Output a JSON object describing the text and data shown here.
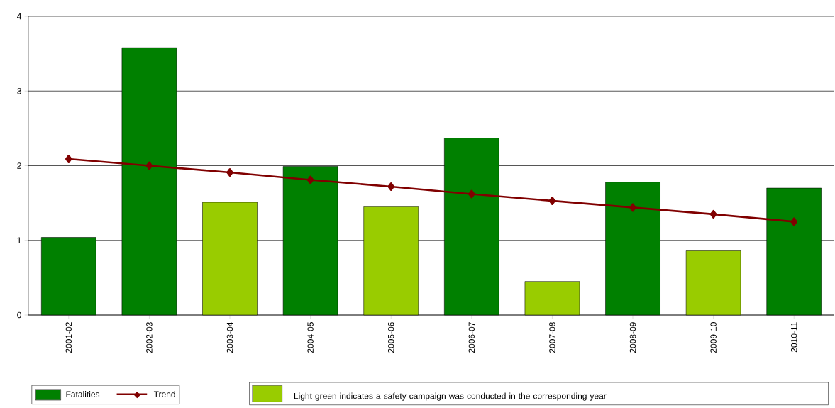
{
  "chart_data": {
    "type": "bar",
    "categories": [
      "2001-02",
      "2002-03",
      "2003-04",
      "2004-05",
      "2005-06",
      "2006-07",
      "2007-08",
      "2008-09",
      "2009-10",
      "2010-11"
    ],
    "series": [
      {
        "name": "Fatalities",
        "color": "#008000",
        "colors": [
          "#008000",
          "#008000",
          "#99cc00",
          "#008000",
          "#99cc00",
          "#008000",
          "#99cc00",
          "#008000",
          "#99cc00",
          "#008000"
        ],
        "values": [
          1.04,
          3.58,
          1.51,
          1.99,
          1.45,
          2.37,
          0.45,
          1.78,
          0.86,
          1.7
        ]
      },
      {
        "name": "Trend",
        "type": "line",
        "color": "#800000",
        "marker": "diamond",
        "values": [
          2.09,
          2.0,
          1.91,
          1.81,
          1.72,
          1.62,
          1.53,
          1.44,
          1.35,
          1.25
        ]
      }
    ],
    "ylim": [
      0,
      4
    ],
    "yticks": [
      0,
      1,
      2,
      3,
      4
    ],
    "grid": "y",
    "legend": "bottom left",
    "annotations": [
      "Light green indicates a safety campaign was conducted in the corresponding year"
    ]
  }
}
